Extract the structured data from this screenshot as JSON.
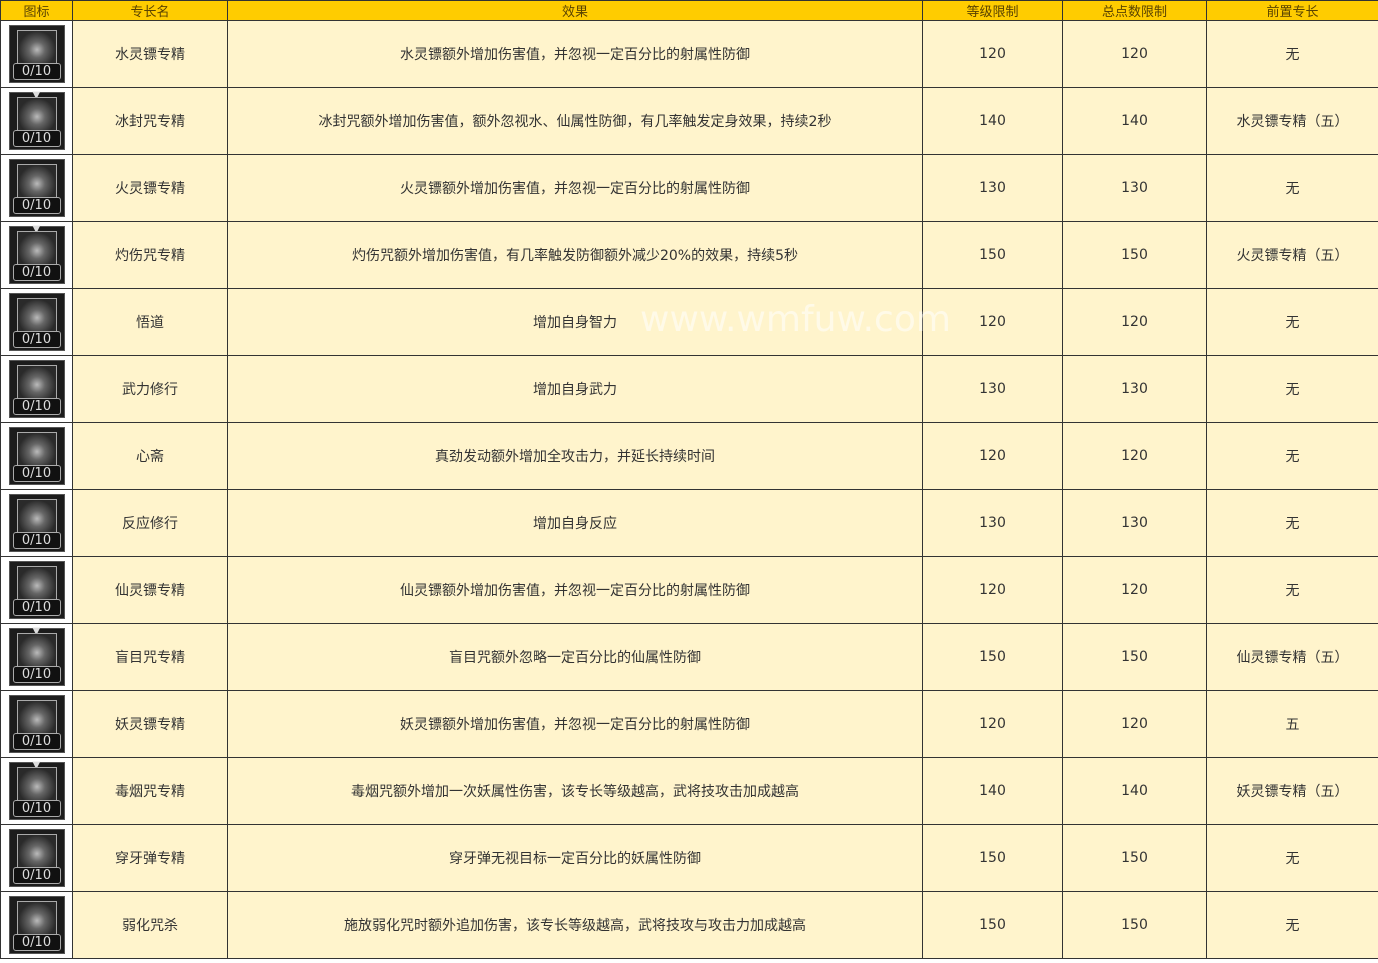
{
  "headers": [
    "图标",
    "专长名",
    "效果",
    "等级限制",
    "总点数限制",
    "前置专长"
  ],
  "watermark": "www.wmfuw.com",
  "rows": [
    {
      "icon": "dart-icon",
      "arrow": false,
      "points": "0/10",
      "name": "水灵镖专精",
      "effect": "水灵镖额外增加伤害值，并忽视一定百分比的射属性防御",
      "level": "120",
      "total": "120",
      "prereq": "无"
    },
    {
      "icon": "ice-crystal-icon",
      "arrow": true,
      "points": "0/10",
      "name": "冰封咒专精",
      "effect": "冰封咒额外增加伤害值，额外忽视水、仙属性防御，有几率触发定身效果，持续2秒",
      "level": "140",
      "total": "140",
      "prereq": "水灵镖专精（五）"
    },
    {
      "icon": "dart-icon",
      "arrow": false,
      "points": "0/10",
      "name": "火灵镖专精",
      "effect": "火灵镖额外增加伤害值，并忽视一定百分比的射属性防御",
      "level": "130",
      "total": "130",
      "prereq": "无"
    },
    {
      "icon": "burn-curse-icon",
      "arrow": true,
      "points": "0/10",
      "name": "灼伤咒专精",
      "effect": "灼伤咒额外增加伤害值，有几率触发防御额外减少20%的效果，持续5秒",
      "level": "150",
      "total": "150",
      "prereq": "火灵镖专精（五）"
    },
    {
      "icon": "eye-icon",
      "arrow": false,
      "points": "0/10",
      "name": "悟道",
      "effect": "增加自身智力",
      "level": "120",
      "total": "120",
      "prereq": "无"
    },
    {
      "icon": "fist-icon",
      "arrow": false,
      "points": "0/10",
      "name": "武力修行",
      "effect": "增加自身武力",
      "level": "130",
      "total": "130",
      "prereq": "无"
    },
    {
      "icon": "heart-icon",
      "arrow": false,
      "points": "0/10",
      "name": "心斋",
      "effect": "真劲发动额外增加全攻击力，并延长持续时间",
      "level": "120",
      "total": "120",
      "prereq": "无"
    },
    {
      "icon": "reaction-icon",
      "arrow": false,
      "points": "0/10",
      "name": "反应修行",
      "effect": "增加自身反应",
      "level": "130",
      "total": "130",
      "prereq": "无"
    },
    {
      "icon": "dart-icon",
      "arrow": false,
      "points": "0/10",
      "name": "仙灵镖专精",
      "effect": "仙灵镖额外增加伤害值，并忽视一定百分比的射属性防御",
      "level": "120",
      "total": "120",
      "prereq": "无"
    },
    {
      "icon": "blind-eye-icon",
      "arrow": true,
      "points": "0/10",
      "name": "盲目咒专精",
      "effect": "盲目咒额外忽略一定百分比的仙属性防御",
      "level": "150",
      "total": "150",
      "prereq": "仙灵镖专精（五）"
    },
    {
      "icon": "dart-icon",
      "arrow": false,
      "points": "0/10",
      "name": "妖灵镖专精",
      "effect": "妖灵镖额外增加伤害值，并忽视一定百分比的射属性防御",
      "level": "120",
      "total": "120",
      "prereq": "五"
    },
    {
      "icon": "smoke-icon",
      "arrow": true,
      "points": "0/10",
      "name": "毒烟咒专精",
      "effect": "毒烟咒额外增加一次妖属性伤害，该专长等级越高，武将技攻击加成越高",
      "level": "140",
      "total": "140",
      "prereq": "妖灵镖专精（五）"
    },
    {
      "icon": "bullet-icon",
      "arrow": false,
      "points": "0/10",
      "name": "穿牙弹专精",
      "effect": "穿牙弹无视目标一定百分比的妖属性防御",
      "level": "150",
      "total": "150",
      "prereq": "无"
    },
    {
      "icon": "weaken-curse-icon",
      "arrow": false,
      "points": "0/10",
      "name": "弱化咒杀",
      "effect": "施放弱化咒时额外追加伤害，该专长等级越高，武将技攻与攻击力加成越高",
      "level": "150",
      "total": "150",
      "prereq": "无"
    }
  ]
}
